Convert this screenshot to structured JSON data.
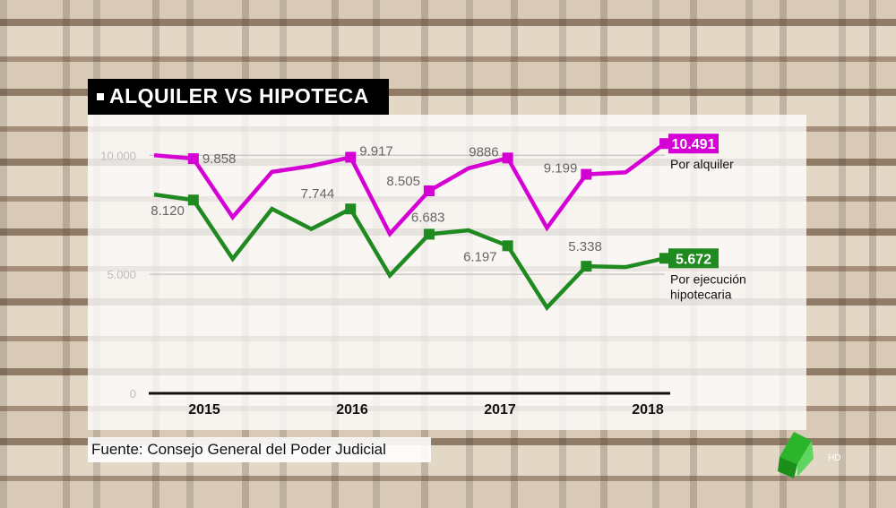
{
  "title": "ALQUILER VS HIPOTECA",
  "source": "Fuente: Consejo General del Poder Judicial",
  "logo_text": "HD",
  "colors": {
    "alquiler": "#d400d4",
    "hipoteca": "#1f8a1f",
    "label_alquiler_bg": "#d400d4",
    "label_hipoteca_bg": "#1f8a1f"
  },
  "chart_data": {
    "type": "line",
    "title": "ALQUILER VS HIPOTECA",
    "y_ticks": [
      {
        "value": 10000,
        "label": "10.000"
      },
      {
        "value": 5000,
        "label": "5.000"
      },
      {
        "value": 0,
        "label": "0"
      }
    ],
    "x_labels": [
      "2015",
      "2016",
      "2017",
      "2018"
    ],
    "ylim": [
      0,
      10500
    ],
    "x": [
      0,
      1,
      2,
      3,
      4,
      5,
      6,
      7,
      8,
      9,
      10,
      11,
      12,
      13
    ],
    "series": [
      {
        "name": "Por alquiler",
        "color": "#d400d4",
        "values": [
          10000,
          9858,
          7400,
          9300,
          9550,
          9917,
          6700,
          8505,
          9450,
          9886,
          6950,
          9199,
          9280,
          10491
        ],
        "markers": [
          1,
          5,
          7,
          9,
          11,
          13
        ],
        "point_labels": [
          {
            "index": 1,
            "text": "9.858"
          },
          {
            "index": 5,
            "text": "9.917"
          },
          {
            "index": 7,
            "text": "8.505"
          },
          {
            "index": 9,
            "text": "9886"
          },
          {
            "index": 11,
            "text": "9.199"
          }
        ],
        "end_label": "10.491"
      },
      {
        "name": "Por ejecución hipotecaria",
        "color": "#1f8a1f",
        "values": [
          8350,
          8120,
          5650,
          7750,
          6900,
          7744,
          4950,
          6683,
          6850,
          6197,
          3600,
          5338,
          5300,
          5672
        ],
        "markers": [
          1,
          5,
          7,
          9,
          11,
          13
        ],
        "point_labels": [
          {
            "index": 1,
            "text": "8.120"
          },
          {
            "index": 5,
            "text": "7.744"
          },
          {
            "index": 7,
            "text": "6.683"
          },
          {
            "index": 9,
            "text": "6.197"
          },
          {
            "index": 11,
            "text": "5.338"
          }
        ],
        "end_label": "5.672"
      }
    ],
    "legend": [
      {
        "lines": [
          "Por alquiler"
        ]
      },
      {
        "lines": [
          "Por ejecución",
          "hipotecaria"
        ]
      }
    ],
    "grid": true
  }
}
